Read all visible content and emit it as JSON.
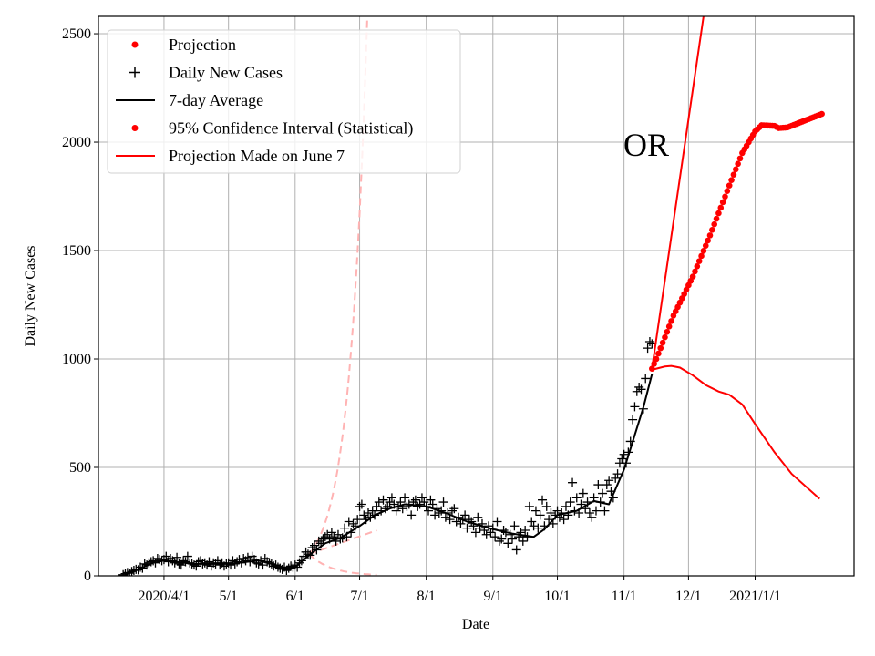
{
  "chart_data": {
    "type": "line",
    "xlabel": "Date",
    "ylabel": "Daily New Cases",
    "x_units": "day of year index (0 = 2020-01-01)",
    "xlim": [
      60.5,
      412
    ],
    "ylim": [
      0,
      2580
    ],
    "grid": true,
    "annotation": "OR",
    "xticks": [
      {
        "x": 91,
        "label": "2020/4/1"
      },
      {
        "x": 121,
        "label": "5/1"
      },
      {
        "x": 152,
        "label": "6/1"
      },
      {
        "x": 182,
        "label": "7/1"
      },
      {
        "x": 213,
        "label": "8/1"
      },
      {
        "x": 244,
        "label": "9/1"
      },
      {
        "x": 274,
        "label": "10/1"
      },
      {
        "x": 305,
        "label": "11/1"
      },
      {
        "x": 335,
        "label": "12/1"
      },
      {
        "x": 366,
        "label": "2021/1/1"
      }
    ],
    "yticks": [
      0,
      500,
      1000,
      1500,
      2000,
      2500
    ],
    "legend": {
      "placement": "upper-left",
      "entries": [
        {
          "label": "Projection",
          "marker": "dot",
          "color": "#ff0000"
        },
        {
          "label": "Daily New Cases",
          "marker": "plus",
          "color": "#000000"
        },
        {
          "label": "7-day Average",
          "marker": "line",
          "color": "#000000"
        },
        {
          "label": "95% Confidence Interval (Statistical)",
          "marker": "dot",
          "color": "#ff0000"
        },
        {
          "label": "Projection Made on June 7",
          "marker": "line",
          "color": "#ff0000"
        }
      ]
    },
    "daily_cases": {
      "start_day": 72,
      "values": [
        5,
        10,
        15,
        12,
        20,
        25,
        30,
        28,
        40,
        35,
        55,
        50,
        60,
        65,
        70,
        60,
        80,
        75,
        70,
        75,
        90,
        65,
        80,
        70,
        60,
        85,
        55,
        50,
        70,
        65,
        90,
        60,
        55,
        50,
        45,
        65,
        70,
        55,
        60,
        50,
        65,
        45,
        60,
        55,
        70,
        50,
        60,
        45,
        55,
        60,
        50,
        70,
        55,
        65,
        75,
        60,
        80,
        70,
        85,
        65,
        90,
        75,
        60,
        55,
        70,
        50,
        80,
        65,
        60,
        55,
        45,
        50,
        40,
        35,
        30,
        40,
        25,
        35,
        45,
        40,
        50,
        40,
        60,
        70,
        90,
        110,
        100,
        95,
        130,
        140,
        120,
        160,
        150,
        170,
        180,
        190,
        170,
        200,
        180,
        160,
        190,
        170,
        175,
        220,
        180,
        250,
        200,
        240,
        230,
        260,
        320,
        330,
        280,
        260,
        290,
        270,
        300,
        280,
        320,
        340,
        300,
        350,
        310,
        320,
        340,
        360,
        330,
        300,
        320,
        340,
        310,
        360,
        320,
        330,
        280,
        340,
        350,
        320,
        330,
        360,
        340,
        320,
        300,
        350,
        330,
        280,
        310,
        290,
        300,
        340,
        270,
        290,
        260,
        300,
        310,
        250,
        270,
        240,
        260,
        280,
        220,
        260,
        250,
        230,
        200,
        270,
        220,
        240,
        210,
        190,
        230,
        200,
        220,
        180,
        250,
        160,
        170,
        210,
        200,
        150,
        190,
        170,
        230,
        120,
        180,
        200,
        160,
        210,
        180,
        320,
        250,
        230,
        300,
        220,
        280,
        350,
        230,
        320,
        260,
        290,
        240,
        280,
        300,
        270,
        290,
        260,
        320,
        280,
        340,
        430,
        300,
        360,
        290,
        330,
        380,
        310,
        340,
        290,
        270,
        360,
        300,
        420,
        340,
        380,
        300,
        420,
        440,
        390,
        360,
        450,
        470,
        520,
        540,
        560,
        520,
        570,
        620,
        720,
        780,
        850,
        870,
        860,
        770,
        910,
        1050,
        1080,
        1070
      ]
    },
    "seven_day_average": [
      [
        72,
        0
      ],
      [
        79,
        30
      ],
      [
        86,
        60
      ],
      [
        91,
        70
      ],
      [
        105,
        55
      ],
      [
        121,
        55
      ],
      [
        135,
        70
      ],
      [
        145,
        45
      ],
      [
        149,
        28
      ],
      [
        152,
        40
      ],
      [
        159,
        100
      ],
      [
        166,
        150
      ],
      [
        173,
        175
      ],
      [
        182,
        230
      ],
      [
        189,
        280
      ],
      [
        196,
        310
      ],
      [
        203,
        330
      ],
      [
        213,
        320
      ],
      [
        222,
        290
      ],
      [
        232,
        250
      ],
      [
        244,
        215
      ],
      [
        253,
        195
      ],
      [
        263,
        180
      ],
      [
        268,
        215
      ],
      [
        274,
        280
      ],
      [
        283,
        300
      ],
      [
        291,
        345
      ],
      [
        298,
        330
      ],
      [
        305,
        490
      ],
      [
        314,
        777
      ],
      [
        318,
        930
      ]
    ],
    "projection_dots": [
      [
        318,
        955
      ],
      [
        320,
        1000
      ],
      [
        328,
        1200
      ],
      [
        337,
        1380
      ],
      [
        345,
        1570
      ],
      [
        354,
        1800
      ],
      [
        360,
        1950
      ],
      [
        366,
        2050
      ],
      [
        369,
        2078
      ],
      [
        375,
        2075
      ],
      [
        377,
        2065
      ],
      [
        381,
        2068
      ],
      [
        397,
        2130
      ]
    ],
    "ci_upper_line": [
      [
        318,
        955
      ],
      [
        342,
        2580
      ],
      [
        350,
        3120
      ]
    ],
    "ci_lower_line": [
      [
        318,
        950
      ],
      [
        324,
        965
      ],
      [
        327,
        968
      ],
      [
        331,
        960
      ],
      [
        337,
        925
      ],
      [
        343,
        880
      ],
      [
        349,
        850
      ],
      [
        354,
        835
      ],
      [
        360,
        790
      ],
      [
        366,
        700
      ],
      [
        375,
        570
      ],
      [
        383,
        470
      ],
      [
        396,
        355
      ]
    ],
    "june7_projection": {
      "color": "#ffb3b3",
      "start_day": 158.5,
      "start_value": 100,
      "upper_rate": 0.12,
      "lower_rate": -0.097,
      "middle_end": [
        190,
        210
      ],
      "end_day": 190
    }
  }
}
